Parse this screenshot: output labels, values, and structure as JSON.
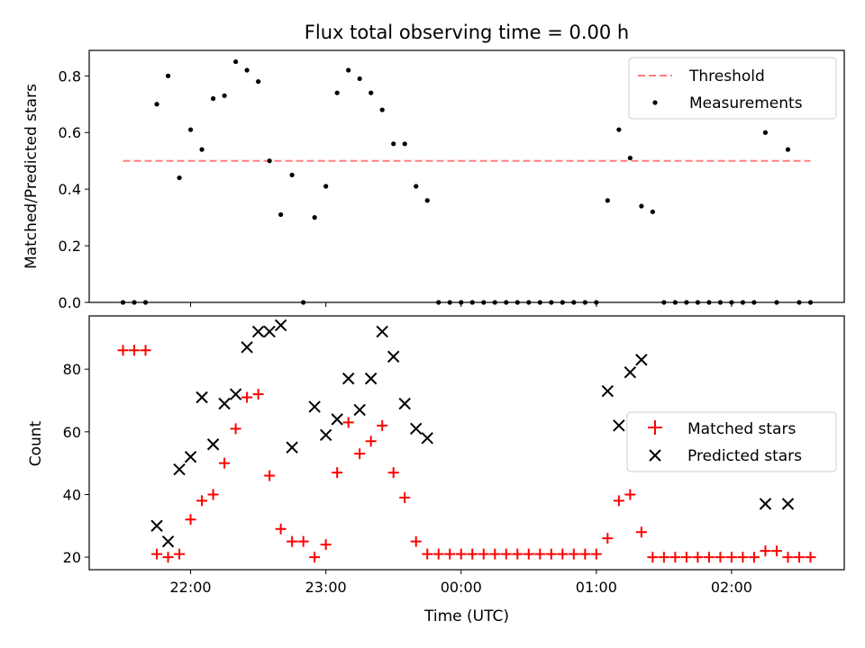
{
  "title": "Flux total observing time = 0.00 h",
  "colors": {
    "threshold": "#ff7f7f",
    "measurements": "#000000",
    "matched": "#ff0000",
    "predicted": "#000000"
  },
  "chart_data": [
    {
      "type": "scatter",
      "title": "Flux total observing time = 0.00 h",
      "ylabel": "Matched/Predicted stars",
      "xlabel": "",
      "xlim": [
        "21:15",
        "02:50"
      ],
      "ylim": [
        0,
        0.89
      ],
      "yticks": [
        "0.0",
        "0.2",
        "0.4",
        "0.6",
        "0.8"
      ],
      "legend_position": "top-right",
      "legend": [
        "Threshold",
        "Measurements"
      ],
      "threshold": {
        "name": "Threshold",
        "value": 0.5,
        "x_start": "21:30",
        "x_end": "02:35",
        "style": "dashed"
      },
      "series": [
        {
          "name": "Measurements",
          "points": [
            [
              "21:30",
              0.0
            ],
            [
              "21:35",
              0.0
            ],
            [
              "21:40",
              0.0
            ],
            [
              "21:45",
              0.7
            ],
            [
              "21:50",
              0.8
            ],
            [
              "21:55",
              0.44
            ],
            [
              "22:00",
              0.61
            ],
            [
              "22:05",
              0.54
            ],
            [
              "22:10",
              0.72
            ],
            [
              "22:15",
              0.73
            ],
            [
              "22:20",
              0.85
            ],
            [
              "22:25",
              0.82
            ],
            [
              "22:30",
              0.78
            ],
            [
              "22:35",
              0.5
            ],
            [
              "22:40",
              0.31
            ],
            [
              "22:45",
              0.45
            ],
            [
              "22:50",
              0.0
            ],
            [
              "22:55",
              0.3
            ],
            [
              "23:00",
              0.41
            ],
            [
              "23:05",
              0.74
            ],
            [
              "23:10",
              0.82
            ],
            [
              "23:15",
              0.79
            ],
            [
              "23:20",
              0.74
            ],
            [
              "23:25",
              0.68
            ],
            [
              "23:30",
              0.56
            ],
            [
              "23:35",
              0.56
            ],
            [
              "23:40",
              0.41
            ],
            [
              "23:45",
              0.36
            ],
            [
              "23:50",
              0.0
            ],
            [
              "23:55",
              0.0
            ],
            [
              "00:00",
              0.0
            ],
            [
              "00:05",
              0.0
            ],
            [
              "00:10",
              0.0
            ],
            [
              "00:15",
              0.0
            ],
            [
              "00:20",
              0.0
            ],
            [
              "00:25",
              0.0
            ],
            [
              "00:30",
              0.0
            ],
            [
              "00:35",
              0.0
            ],
            [
              "00:40",
              0.0
            ],
            [
              "00:45",
              0.0
            ],
            [
              "00:50",
              0.0
            ],
            [
              "00:55",
              0.0
            ],
            [
              "01:00",
              0.0
            ],
            [
              "01:05",
              0.36
            ],
            [
              "01:10",
              0.61
            ],
            [
              "01:15",
              0.51
            ],
            [
              "01:20",
              0.34
            ],
            [
              "01:25",
              0.32
            ],
            [
              "01:30",
              0.0
            ],
            [
              "01:35",
              0.0
            ],
            [
              "01:40",
              0.0
            ],
            [
              "01:45",
              0.0
            ],
            [
              "01:50",
              0.0
            ],
            [
              "01:55",
              0.0
            ],
            [
              "02:00",
              0.0
            ],
            [
              "02:05",
              0.0
            ],
            [
              "02:10",
              0.0
            ],
            [
              "02:15",
              0.6
            ],
            [
              "02:20",
              0.0
            ],
            [
              "02:25",
              0.54
            ],
            [
              "02:30",
              0.0
            ],
            [
              "02:35",
              0.0
            ]
          ]
        }
      ]
    },
    {
      "type": "scatter",
      "title": "",
      "xlabel": "Time (UTC)",
      "ylabel": "Count",
      "xlim": [
        "21:15",
        "02:50"
      ],
      "ylim": [
        16,
        97
      ],
      "yticks": [
        "20",
        "40",
        "60",
        "80"
      ],
      "xticks": [
        "22:00",
        "23:00",
        "00:00",
        "01:00",
        "02:00"
      ],
      "legend_position": "center-right",
      "legend": [
        "Matched stars",
        "Predicted stars"
      ],
      "series": [
        {
          "name": "Matched stars",
          "marker": "plus",
          "points": [
            [
              "21:30",
              86
            ],
            [
              "21:35",
              86
            ],
            [
              "21:40",
              86
            ],
            [
              "21:45",
              21
            ],
            [
              "21:50",
              20
            ],
            [
              "21:55",
              21
            ],
            [
              "22:00",
              32
            ],
            [
              "22:05",
              38
            ],
            [
              "22:10",
              40
            ],
            [
              "22:15",
              50
            ],
            [
              "22:20",
              61
            ],
            [
              "22:25",
              71
            ],
            [
              "22:30",
              72
            ],
            [
              "22:35",
              46
            ],
            [
              "22:40",
              29
            ],
            [
              "22:45",
              25
            ],
            [
              "22:50",
              25
            ],
            [
              "22:55",
              20
            ],
            [
              "23:00",
              24
            ],
            [
              "23:05",
              47
            ],
            [
              "23:10",
              63
            ],
            [
              "23:15",
              53
            ],
            [
              "23:20",
              57
            ],
            [
              "23:25",
              62
            ],
            [
              "23:30",
              47
            ],
            [
              "23:35",
              39
            ],
            [
              "23:40",
              25
            ],
            [
              "23:45",
              21
            ],
            [
              "23:50",
              21
            ],
            [
              "23:55",
              21
            ],
            [
              "00:00",
              21
            ],
            [
              "00:05",
              21
            ],
            [
              "00:10",
              21
            ],
            [
              "00:15",
              21
            ],
            [
              "00:20",
              21
            ],
            [
              "00:25",
              21
            ],
            [
              "00:30",
              21
            ],
            [
              "00:35",
              21
            ],
            [
              "00:40",
              21
            ],
            [
              "00:45",
              21
            ],
            [
              "00:50",
              21
            ],
            [
              "00:55",
              21
            ],
            [
              "01:00",
              21
            ],
            [
              "01:05",
              26
            ],
            [
              "01:10",
              38
            ],
            [
              "01:15",
              40
            ],
            [
              "01:20",
              28
            ],
            [
              "01:25",
              20
            ],
            [
              "01:30",
              20
            ],
            [
              "01:35",
              20
            ],
            [
              "01:40",
              20
            ],
            [
              "01:45",
              20
            ],
            [
              "01:50",
              20
            ],
            [
              "01:55",
              20
            ],
            [
              "02:00",
              20
            ],
            [
              "02:05",
              20
            ],
            [
              "02:10",
              20
            ],
            [
              "02:15",
              22
            ],
            [
              "02:20",
              22
            ],
            [
              "02:25",
              20
            ],
            [
              "02:30",
              20
            ],
            [
              "02:35",
              20
            ]
          ]
        },
        {
          "name": "Predicted stars",
          "marker": "x",
          "points": [
            [
              "21:45",
              30
            ],
            [
              "21:50",
              25
            ],
            [
              "21:55",
              48
            ],
            [
              "22:00",
              52
            ],
            [
              "22:05",
              71
            ],
            [
              "22:10",
              56
            ],
            [
              "22:15",
              69
            ],
            [
              "22:20",
              72
            ],
            [
              "22:25",
              87
            ],
            [
              "22:30",
              92
            ],
            [
              "22:35",
              92
            ],
            [
              "22:40",
              94
            ],
            [
              "22:45",
              55
            ],
            [
              "22:55",
              68
            ],
            [
              "23:00",
              59
            ],
            [
              "23:05",
              64
            ],
            [
              "23:10",
              77
            ],
            [
              "23:15",
              67
            ],
            [
              "23:20",
              77
            ],
            [
              "23:25",
              92
            ],
            [
              "23:30",
              84
            ],
            [
              "23:35",
              69
            ],
            [
              "23:40",
              61
            ],
            [
              "23:45",
              58
            ],
            [
              "01:05",
              73
            ],
            [
              "01:10",
              62
            ],
            [
              "01:15",
              79
            ],
            [
              "01:20",
              83
            ],
            [
              "02:15",
              37
            ],
            [
              "02:25",
              37
            ]
          ]
        }
      ]
    }
  ]
}
